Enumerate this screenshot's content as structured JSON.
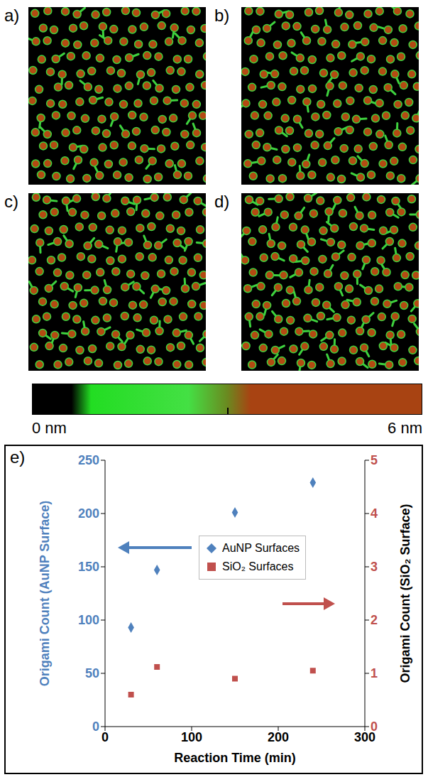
{
  "panels": [
    {
      "label": "a)"
    },
    {
      "label": "b)"
    },
    {
      "label": "c)"
    },
    {
      "label": "d)"
    }
  ],
  "colorbar": {
    "range": [
      0,
      6
    ],
    "ticks": [
      {
        "value": 0,
        "label": "0 nm"
      },
      {
        "value": 6,
        "label": "6 nm"
      }
    ]
  },
  "chart_data": {
    "type": "scatter",
    "label": "e)",
    "x_label": "Reaction Time (min)",
    "y_label": "Origami Count (AuNP Surface)",
    "y2_label": "Origami Count (SiO₂ Surface)",
    "x": [
      30,
      60,
      150,
      240
    ],
    "xlim": [
      0,
      300
    ],
    "xticks": [
      0,
      100,
      200,
      300
    ],
    "ylim": [
      0,
      250
    ],
    "yticks": [
      0,
      50,
      100,
      150,
      200,
      250
    ],
    "y2lim": [
      0,
      5
    ],
    "y2ticks": [
      0,
      1,
      2,
      3,
      4,
      5
    ],
    "legend": "top",
    "series": [
      {
        "name": "AuNP Surfaces",
        "color": "#4f81bd",
        "marker": "diamond",
        "values": [
          93,
          147,
          201,
          229
        ]
      },
      {
        "name": "SiO₂ Surfaces",
        "color": "#c0504d",
        "marker": "square",
        "axis": "y2",
        "values": [
          0.6,
          1.12,
          0.9,
          1.05
        ]
      }
    ]
  }
}
